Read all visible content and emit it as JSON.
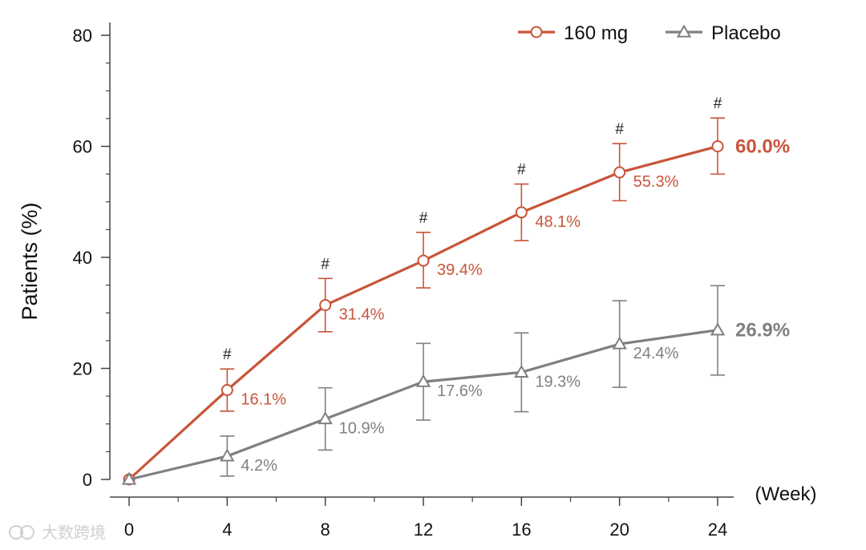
{
  "chart_data": {
    "type": "line",
    "title": "",
    "xlabel": "(Week)",
    "ylabel": "Patients (%)",
    "x": [
      0,
      4,
      8,
      12,
      16,
      20,
      24
    ],
    "xlim": [
      0,
      24
    ],
    "ylim": [
      0,
      80
    ],
    "yticks": [
      0,
      20,
      40,
      60,
      80
    ],
    "legend_position": "top-right",
    "series": [
      {
        "name": "160 mg",
        "color": "#c8553a",
        "marker": "circle",
        "values": [
          0,
          16.1,
          31.4,
          39.4,
          48.1,
          55.3,
          60.0
        ],
        "error_low": [
          0,
          12.3,
          26.6,
          34.5,
          43.0,
          50.2,
          55.0
        ],
        "error_high": [
          0,
          19.9,
          36.2,
          44.5,
          53.2,
          60.5,
          65.1
        ],
        "labels": [
          "",
          "16.1%",
          "31.4%",
          "39.4%",
          "48.1%",
          "55.3%",
          "60.0%"
        ],
        "significance": [
          "",
          "#",
          "#",
          "#",
          "#",
          "#",
          "#"
        ]
      },
      {
        "name": "Placebo",
        "color": "#808080",
        "marker": "triangle",
        "values": [
          0,
          4.2,
          10.9,
          17.6,
          19.3,
          24.4,
          26.9
        ],
        "error_low": [
          0,
          0.6,
          5.3,
          10.7,
          12.2,
          16.6,
          18.8
        ],
        "error_high": [
          0,
          7.8,
          16.5,
          24.5,
          26.4,
          32.2,
          34.9
        ],
        "labels": [
          "",
          "4.2%",
          "10.9%",
          "17.6%",
          "19.3%",
          "24.4%",
          "26.9%"
        ]
      }
    ]
  },
  "watermark": "大数跨境"
}
